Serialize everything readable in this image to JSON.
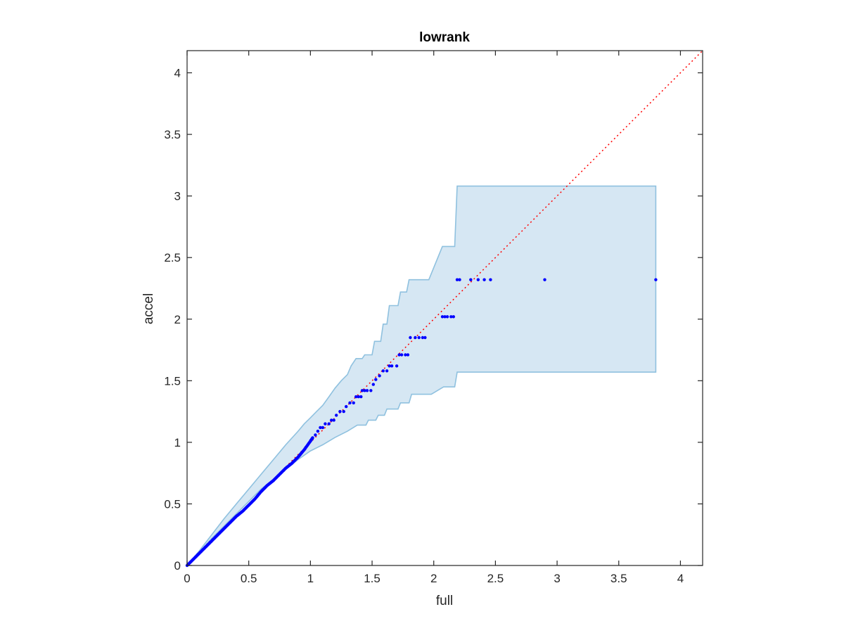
{
  "chart_data": {
    "type": "scatter",
    "title": "lowrank",
    "xlabel": "full",
    "ylabel": "accel",
    "xlim": [
      0,
      4.18
    ],
    "ylim": [
      0,
      4.18
    ],
    "xticks": [
      0,
      0.5,
      1,
      1.5,
      2,
      2.5,
      3,
      3.5,
      4
    ],
    "yticks": [
      0,
      0.5,
      1,
      1.5,
      2,
      2.5,
      3,
      3.5,
      4
    ],
    "xtick_labels": [
      "0",
      "0.5",
      "1",
      "1.5",
      "2",
      "2.5",
      "3",
      "3.5",
      "4"
    ],
    "ytick_labels": [
      "0",
      "0.5",
      "1",
      "1.5",
      "2",
      "2.5",
      "3",
      "3.5",
      "4"
    ],
    "grid": false,
    "colors": {
      "points": "#0000ff",
      "band_fill": "#d6e7f3",
      "band_edge": "#8fc1df",
      "reference_line": "#ff0000",
      "axes": "#262626"
    },
    "reference_line": {
      "style": "dotted",
      "x": [
        0,
        4.18
      ],
      "y": [
        0,
        4.18
      ]
    },
    "band": {
      "upper": [
        [
          0,
          0
        ],
        [
          0.1,
          0.12
        ],
        [
          0.2,
          0.25
        ],
        [
          0.3,
          0.38
        ],
        [
          0.4,
          0.5
        ],
        [
          0.5,
          0.62
        ],
        [
          0.6,
          0.74
        ],
        [
          0.7,
          0.86
        ],
        [
          0.8,
          0.98
        ],
        [
          0.9,
          1.09
        ],
        [
          0.95,
          1.15
        ],
        [
          1.0,
          1.2
        ],
        [
          1.05,
          1.25
        ],
        [
          1.1,
          1.3
        ],
        [
          1.15,
          1.37
        ],
        [
          1.2,
          1.44
        ],
        [
          1.25,
          1.5
        ],
        [
          1.3,
          1.55
        ],
        [
          1.33,
          1.62
        ],
        [
          1.37,
          1.68
        ],
        [
          1.42,
          1.68
        ],
        [
          1.44,
          1.71
        ],
        [
          1.5,
          1.71
        ],
        [
          1.52,
          1.82
        ],
        [
          1.57,
          1.82
        ],
        [
          1.59,
          1.96
        ],
        [
          1.62,
          1.96
        ],
        [
          1.64,
          2.11
        ],
        [
          1.71,
          2.11
        ],
        [
          1.73,
          2.22
        ],
        [
          1.78,
          2.22
        ],
        [
          1.8,
          2.32
        ],
        [
          1.96,
          2.32
        ],
        [
          2.07,
          2.59
        ],
        [
          2.17,
          2.59
        ],
        [
          2.19,
          3.08
        ],
        [
          3.8,
          3.08
        ]
      ],
      "lower": [
        [
          3.8,
          1.57
        ],
        [
          2.19,
          1.57
        ],
        [
          2.17,
          1.45
        ],
        [
          2.08,
          1.45
        ],
        [
          1.98,
          1.39
        ],
        [
          1.82,
          1.39
        ],
        [
          1.8,
          1.32
        ],
        [
          1.73,
          1.32
        ],
        [
          1.71,
          1.27
        ],
        [
          1.62,
          1.27
        ],
        [
          1.6,
          1.22
        ],
        [
          1.55,
          1.22
        ],
        [
          1.53,
          1.18
        ],
        [
          1.47,
          1.18
        ],
        [
          1.45,
          1.14
        ],
        [
          1.38,
          1.14
        ],
        [
          1.3,
          1.09
        ],
        [
          1.2,
          1.04
        ],
        [
          1.1,
          0.98
        ],
        [
          1.0,
          0.93
        ],
        [
          0.9,
          0.86
        ],
        [
          0.8,
          0.78
        ],
        [
          0.7,
          0.7
        ],
        [
          0.6,
          0.62
        ],
        [
          0.5,
          0.52
        ],
        [
          0.4,
          0.42
        ],
        [
          0.3,
          0.32
        ],
        [
          0.2,
          0.22
        ],
        [
          0.1,
          0.11
        ],
        [
          0,
          0
        ]
      ]
    },
    "dense_curve": [
      [
        0,
        0
      ],
      [
        0.05,
        0.05
      ],
      [
        0.1,
        0.1
      ],
      [
        0.15,
        0.15
      ],
      [
        0.2,
        0.2
      ],
      [
        0.25,
        0.25
      ],
      [
        0.3,
        0.3
      ],
      [
        0.35,
        0.35
      ],
      [
        0.4,
        0.4
      ],
      [
        0.45,
        0.44
      ],
      [
        0.5,
        0.49
      ],
      [
        0.55,
        0.54
      ],
      [
        0.6,
        0.6
      ],
      [
        0.65,
        0.65
      ],
      [
        0.7,
        0.69
      ],
      [
        0.75,
        0.74
      ],
      [
        0.8,
        0.79
      ],
      [
        0.85,
        0.83
      ],
      [
        0.9,
        0.88
      ],
      [
        0.95,
        0.94
      ],
      [
        1.0,
        1.01
      ],
      [
        1.02,
        1.04
      ]
    ],
    "points": [
      [
        1.04,
        1.06
      ],
      [
        1.06,
        1.09
      ],
      [
        1.08,
        1.12
      ],
      [
        1.1,
        1.12
      ],
      [
        1.12,
        1.15
      ],
      [
        1.15,
        1.15
      ],
      [
        1.17,
        1.18
      ],
      [
        1.19,
        1.18
      ],
      [
        1.21,
        1.22
      ],
      [
        1.24,
        1.25
      ],
      [
        1.27,
        1.25
      ],
      [
        1.29,
        1.29
      ],
      [
        1.32,
        1.32
      ],
      [
        1.35,
        1.32
      ],
      [
        1.37,
        1.37
      ],
      [
        1.39,
        1.37
      ],
      [
        1.41,
        1.37
      ],
      [
        1.42,
        1.42
      ],
      [
        1.44,
        1.42
      ],
      [
        1.46,
        1.42
      ],
      [
        1.49,
        1.42
      ],
      [
        1.51,
        1.47
      ],
      [
        1.53,
        1.51
      ],
      [
        1.56,
        1.54
      ],
      [
        1.59,
        1.58
      ],
      [
        1.62,
        1.58
      ],
      [
        1.64,
        1.62
      ],
      [
        1.66,
        1.62
      ],
      [
        1.7,
        1.62
      ],
      [
        1.72,
        1.71
      ],
      [
        1.74,
        1.71
      ],
      [
        1.77,
        1.71
      ],
      [
        1.79,
        1.71
      ],
      [
        1.81,
        1.85
      ],
      [
        1.85,
        1.85
      ],
      [
        1.88,
        1.85
      ],
      [
        1.91,
        1.85
      ],
      [
        1.93,
        1.85
      ],
      [
        2.07,
        2.02
      ],
      [
        2.09,
        2.02
      ],
      [
        2.11,
        2.02
      ],
      [
        2.14,
        2.02
      ],
      [
        2.16,
        2.02
      ],
      [
        2.19,
        2.32
      ],
      [
        2.21,
        2.32
      ],
      [
        2.3,
        2.32
      ],
      [
        2.36,
        2.32
      ],
      [
        2.41,
        2.32
      ],
      [
        2.46,
        2.32
      ],
      [
        2.9,
        2.32
      ],
      [
        3.8,
        2.32
      ]
    ]
  }
}
